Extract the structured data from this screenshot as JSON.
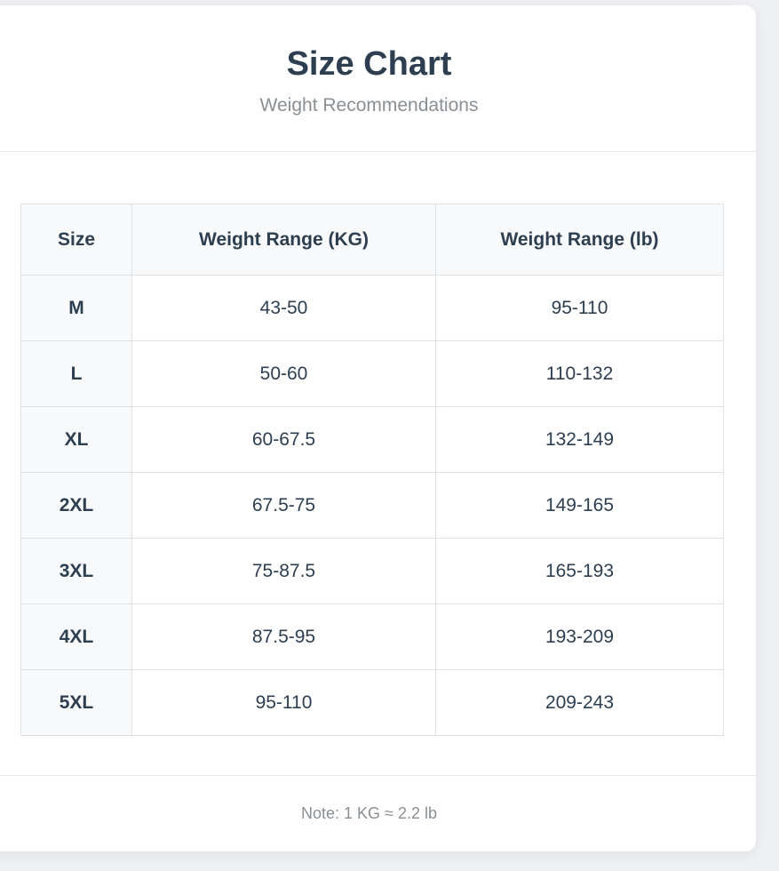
{
  "header": {
    "title": "Size Chart",
    "subtitle": "Weight Recommendations"
  },
  "table": {
    "columns": [
      "Size",
      "Weight Range (KG)",
      "Weight Range (lb)"
    ],
    "rows": [
      [
        "M",
        "43-50",
        "95-110"
      ],
      [
        "L",
        "50-60",
        "110-132"
      ],
      [
        "XL",
        "60-67.5",
        "132-149"
      ],
      [
        "2XL",
        "67.5-75",
        "149-165"
      ],
      [
        "3XL",
        "75-87.5",
        "165-193"
      ],
      [
        "4XL",
        "87.5-95",
        "193-209"
      ],
      [
        "5XL",
        "95-110",
        "209-243"
      ]
    ]
  },
  "footer": {
    "note": "Note: 1 KG ≈ 2.2 lb"
  }
}
